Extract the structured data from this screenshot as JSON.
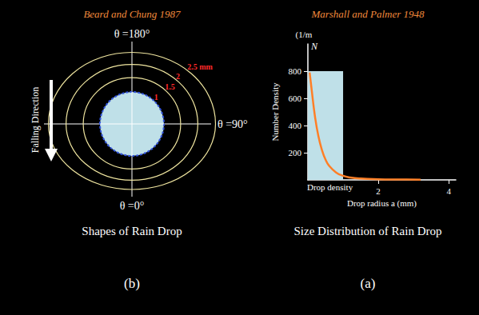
{
  "diagram": {
    "title": "Beard and Chung 1987",
    "arrow_label": "Falling Direction",
    "angles": [
      {
        "label": "θ =180°",
        "position": "top"
      },
      {
        "label": "θ =90°",
        "position": "right"
      },
      {
        "label": "θ =0°",
        "position": "bottom"
      }
    ],
    "contours": [
      {
        "radius": 2.5,
        "label": "2.5 mm"
      },
      {
        "radius": 2,
        "label": "2"
      },
      {
        "radius": 1.5,
        "label": "1.5"
      },
      {
        "radius": 1,
        "label": "1"
      }
    ],
    "caption": "Shapes of Rain Drop",
    "panel": "(b)"
  },
  "chart_data": {
    "type": "line",
    "title": "Marshall and Palmer 1948",
    "y_unit_label": "(1/m",
    "y_symbol": "N",
    "ylabel": "Number Density",
    "xlabel": "Drop radius a (mm)",
    "annotation": "Drop density",
    "x": [
      0.05,
      0.1,
      0.2,
      0.3,
      0.4,
      0.5,
      0.6,
      0.8,
      1.0,
      1.2,
      1.5,
      2.0,
      2.5,
      3.2
    ],
    "values": [
      790,
      680,
      470,
      320,
      220,
      150,
      105,
      55,
      30,
      18,
      10,
      5,
      3,
      2
    ],
    "color": "#ff7f27",
    "band": {
      "x": [
        0,
        1
      ],
      "value": 800,
      "color": "#bfe0e8"
    },
    "xlim": [
      0,
      4.2
    ],
    "xticks": [
      2,
      4
    ],
    "ylim": [
      0,
      1000
    ],
    "yticks": [
      200,
      400,
      600,
      800
    ],
    "grid": false,
    "caption": "Size Distribution of Rain Drop",
    "panel": "(a)"
  }
}
